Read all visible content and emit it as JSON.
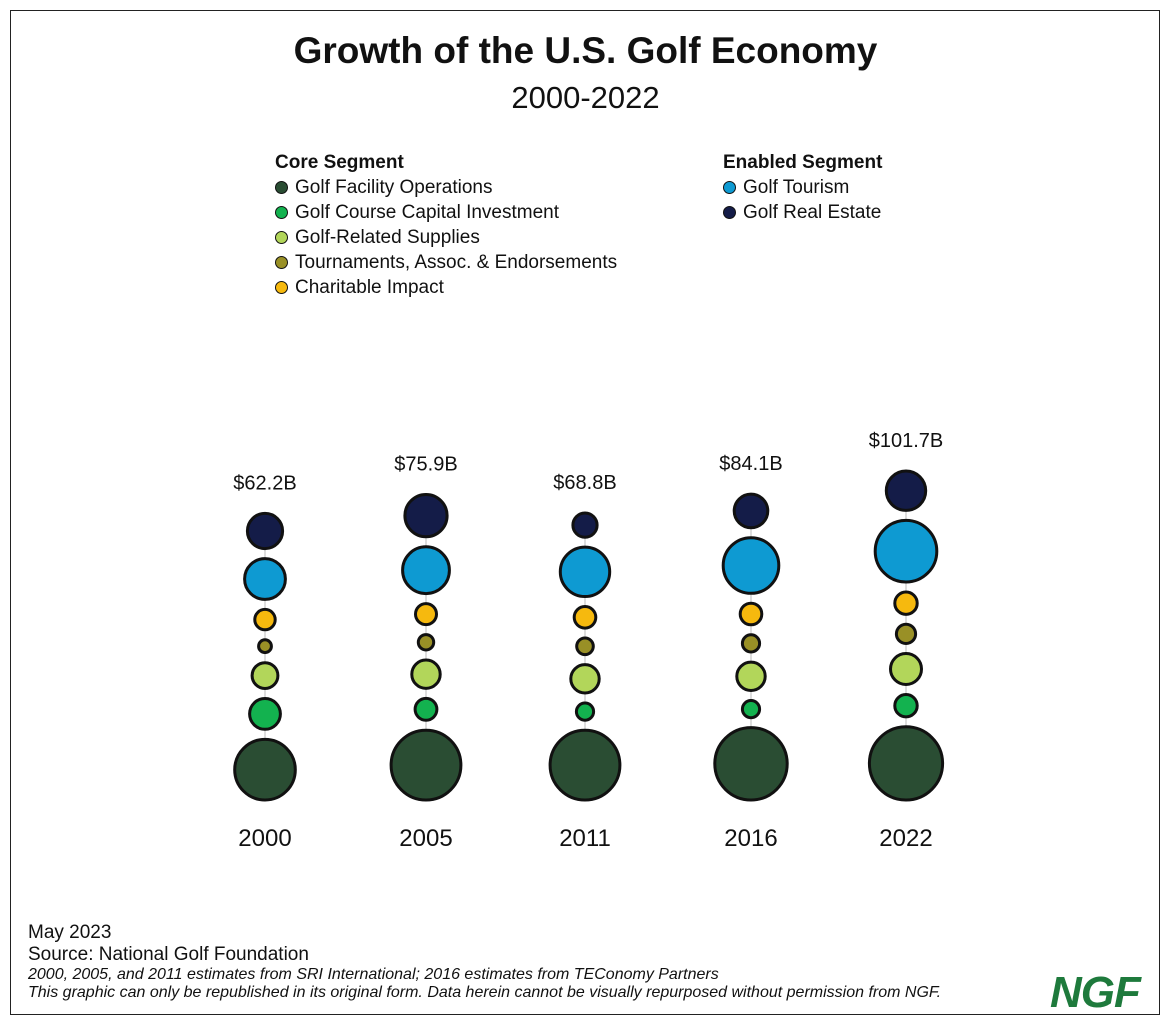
{
  "header": {
    "title": "Growth of the U.S. Golf Economy",
    "subtitle": "2000-2022"
  },
  "legend": {
    "core": {
      "heading": "Core Segment",
      "items": [
        {
          "label": "Golf Facility Operations",
          "color": "#2a4d33"
        },
        {
          "label": "Golf Course Capital Investment",
          "color": "#13b24f"
        },
        {
          "label": "Golf-Related Supplies",
          "color": "#b2d65a"
        },
        {
          "label": "Tournaments, Assoc. & Endorsements",
          "color": "#999026"
        },
        {
          "label": "Charitable Impact",
          "color": "#f6b90e"
        }
      ]
    },
    "enabled": {
      "heading": "Enabled Segment",
      "items": [
        {
          "label": "Golf Tourism",
          "color": "#0e9ad2"
        },
        {
          "label": "Golf Real Estate",
          "color": "#141c48"
        }
      ]
    }
  },
  "chart_data": {
    "type": "bubble",
    "title": "Growth of the U.S. Golf Economy",
    "subtitle": "2000-2022",
    "categories": [
      "2000",
      "2005",
      "2011",
      "2016",
      "2022"
    ],
    "totals": [
      "$62.2B",
      "$75.9B",
      "$68.8B",
      "$84.1B",
      "$101.7B"
    ],
    "series": [
      {
        "name": "Golf Facility Operations",
        "color": "#2a4d33",
        "values": [
          31,
          41,
          41,
          44,
          45
        ]
      },
      {
        "name": "Golf Course Capital Investment",
        "color": "#13b24f",
        "values": [
          8,
          4,
          2.5,
          2.5,
          4.2
        ]
      },
      {
        "name": "Golf-Related Supplies",
        "color": "#b2d65a",
        "values": [
          5.6,
          6.8,
          6.8,
          6.8,
          8.1
        ]
      },
      {
        "name": "Tournaments, Assoc. & Endorsements",
        "color": "#999026",
        "values": [
          1.4,
          2,
          2.3,
          2.5,
          3.1
        ]
      },
      {
        "name": "Charitable Impact",
        "color": "#f6b90e",
        "values": [
          3.5,
          3.7,
          3.9,
          3.9,
          4.2
        ]
      },
      {
        "name": "Golf Tourism",
        "color": "#0e9ad2",
        "values": [
          14,
          18.5,
          20.5,
          26,
          32
        ]
      },
      {
        "name": "Golf Real Estate",
        "color": "#141c48",
        "values": [
          10.4,
          15,
          4.9,
          9.5,
          13
        ]
      }
    ]
  },
  "footer": {
    "date": "May 2023",
    "source": "Source: National Golf Foundation",
    "note1": "2000, 2005, and 2011 estimates from SRI International; 2016 estimates from TEConomy Partners",
    "note2": "This graphic can only be republished in its original form. Data herein cannot be visually repurposed without permission from NGF.",
    "logo": "NGF"
  }
}
